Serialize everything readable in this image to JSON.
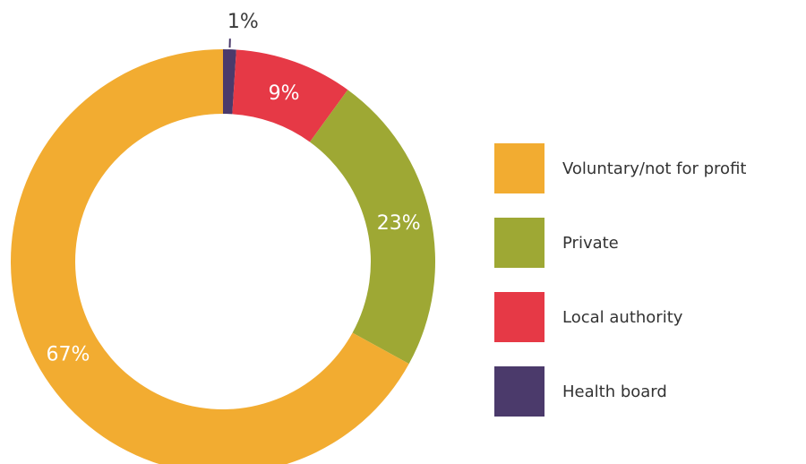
{
  "chart_data": {
    "type": "pie",
    "donut": true,
    "legend_position": "right",
    "slices": [
      {
        "name": "Health board",
        "value": 1,
        "label": "1%",
        "color": "#4b3a6b"
      },
      {
        "name": "Local authority",
        "value": 9,
        "label": "9%",
        "color": "#e63946"
      },
      {
        "name": "Private",
        "value": 23,
        "label": "23%",
        "color": "#9ea834"
      },
      {
        "name": "Voluntary/not for profit",
        "value": 67,
        "label": "67%",
        "color": "#f2ac31"
      }
    ],
    "legend": [
      {
        "label": "Voluntary/not for profit",
        "color": "#f2ac31"
      },
      {
        "label": "Private",
        "color": "#9ea834"
      },
      {
        "label": "Local authority",
        "color": "#e63946"
      },
      {
        "label": "Health board",
        "color": "#4b3a6b"
      }
    ]
  }
}
